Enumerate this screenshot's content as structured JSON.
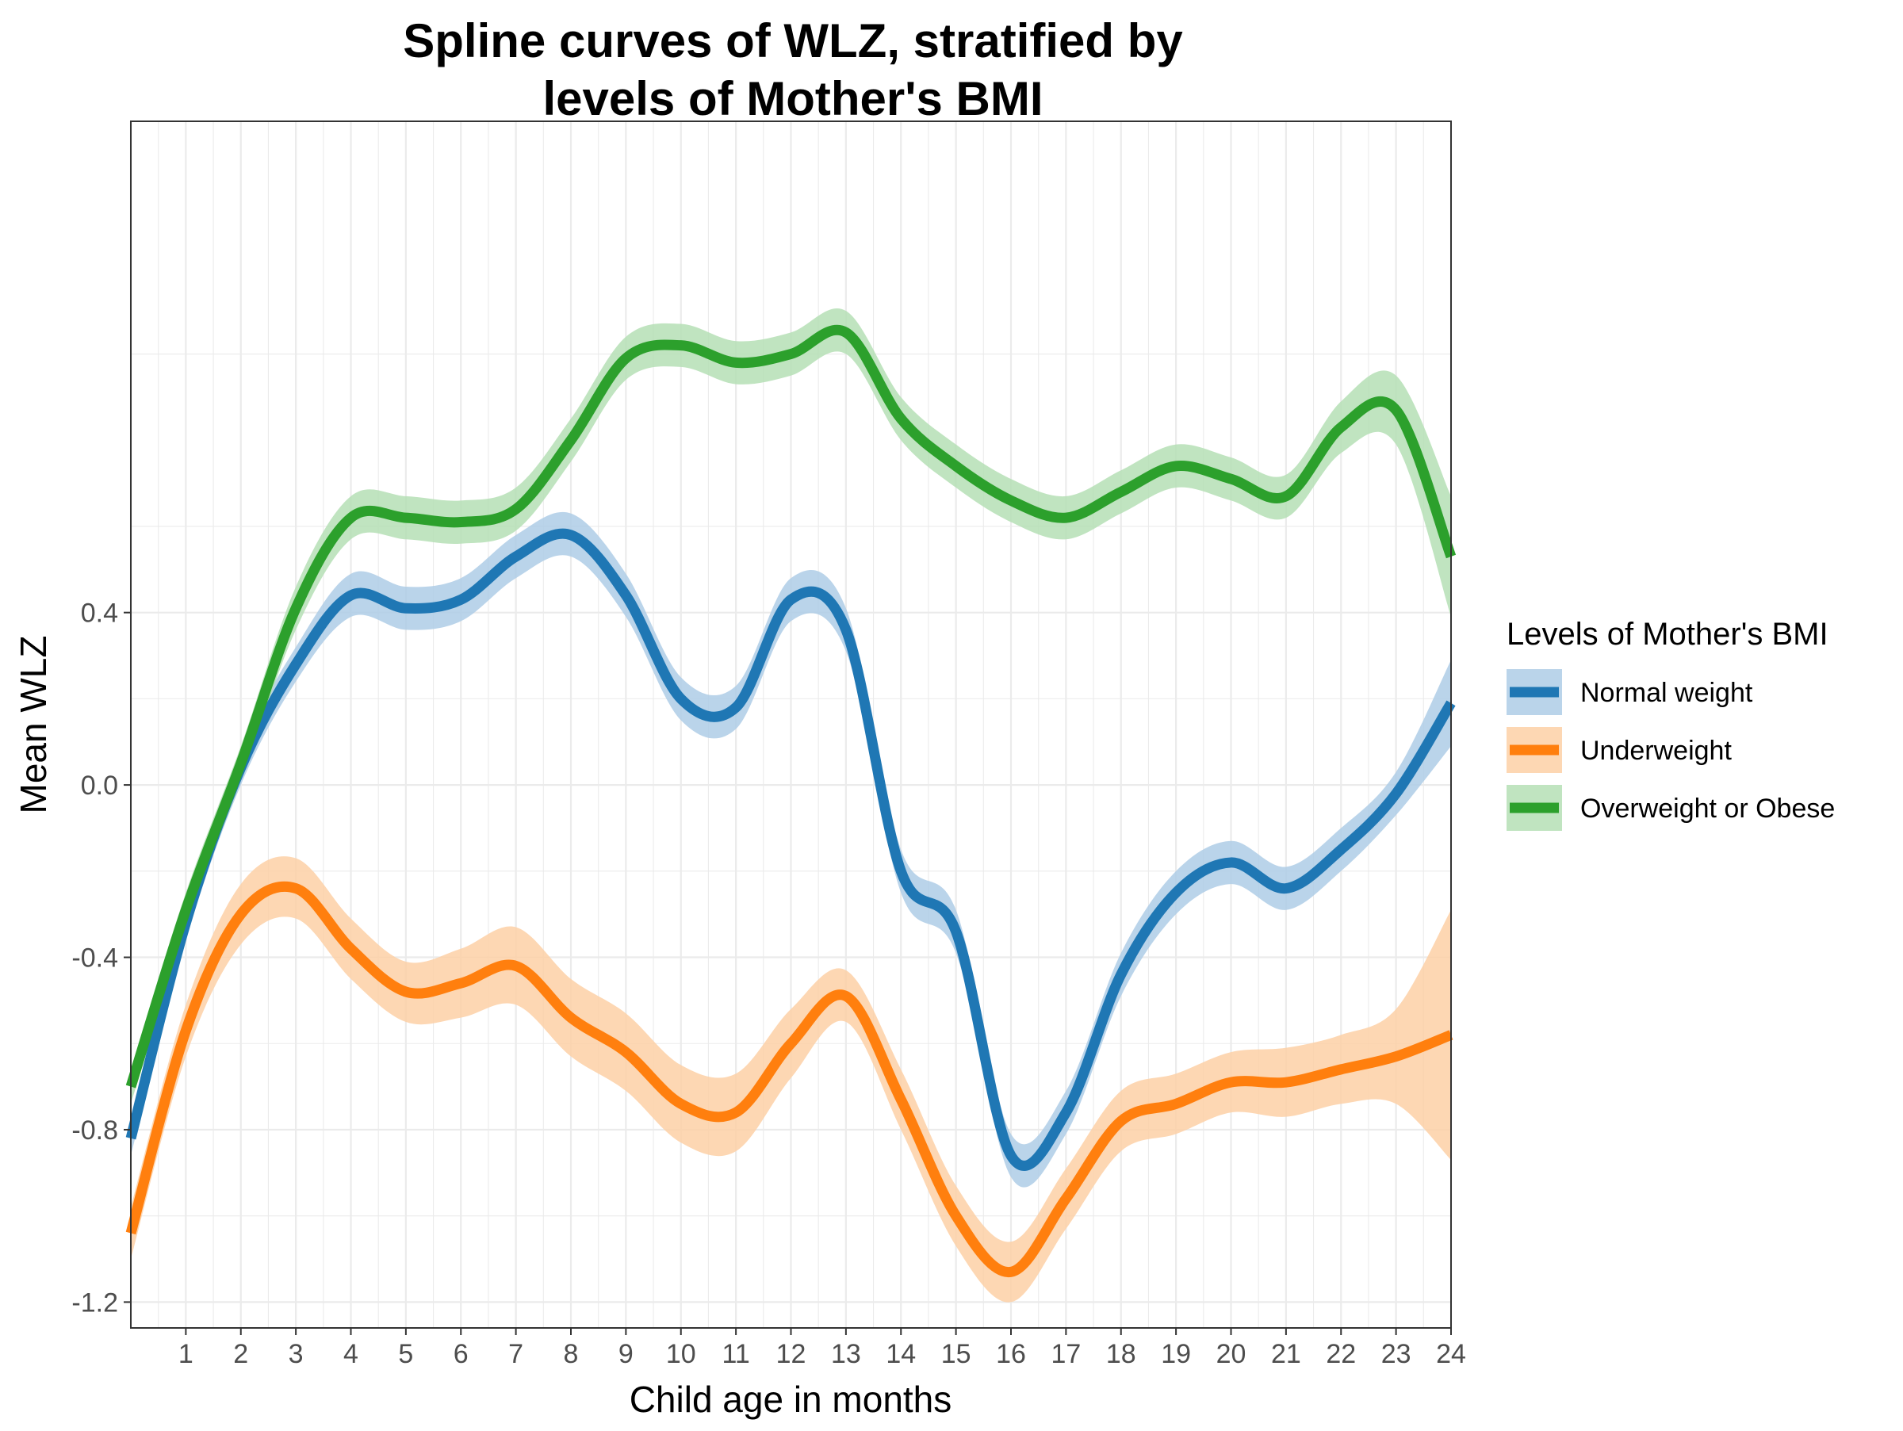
{
  "chart_data": {
    "type": "line",
    "title_lines": [
      "Spline curves of WLZ, stratified by",
      "levels of Mother's BMI"
    ],
    "xlabel": "Child age in months",
    "ylabel": "Mean WLZ",
    "xlim": [
      0,
      24
    ],
    "ylim": [
      -1.26,
      1.54
    ],
    "x_ticks": [
      1,
      2,
      3,
      4,
      5,
      6,
      7,
      8,
      9,
      10,
      11,
      12,
      13,
      14,
      15,
      16,
      17,
      18,
      19,
      20,
      21,
      22,
      23,
      24
    ],
    "x_tick_labels": [
      "1",
      "2",
      "3",
      "4",
      "5",
      "6",
      "7",
      "8",
      "9",
      "10",
      "11",
      "12",
      "13",
      "14",
      "15",
      "16",
      "17",
      "18",
      "19",
      "20",
      "21",
      "22",
      "23",
      "24"
    ],
    "y_ticks": [
      -1.2,
      -0.8,
      -0.4,
      0.0,
      0.4
    ],
    "y_tick_labels": [
      "-1.2",
      "-0.8",
      "-0.4",
      "0.0",
      "0.4"
    ],
    "grid": true,
    "legend": {
      "title": "Levels of Mother's BMI",
      "position": "right"
    },
    "series": [
      {
        "name": "Normal weight",
        "color": "#1f77b4",
        "band_color": "#aecde6",
        "x": [
          0,
          1,
          2,
          3,
          4,
          5,
          6,
          7,
          8,
          9,
          10,
          11,
          12,
          13,
          14,
          15,
          16,
          17,
          18,
          19,
          20,
          21,
          22,
          23,
          24
        ],
        "y": [
          -0.82,
          -0.32,
          0.04,
          0.28,
          0.44,
          0.41,
          0.43,
          0.53,
          0.58,
          0.44,
          0.2,
          0.18,
          0.43,
          0.36,
          -0.2,
          -0.34,
          -0.86,
          -0.76,
          -0.44,
          -0.25,
          -0.18,
          -0.24,
          -0.15,
          -0.02,
          0.19
        ],
        "lower": [
          -0.86,
          -0.36,
          0.0,
          0.24,
          0.39,
          0.36,
          0.38,
          0.48,
          0.53,
          0.39,
          0.15,
          0.13,
          0.38,
          0.31,
          -0.25,
          -0.39,
          -0.91,
          -0.81,
          -0.49,
          -0.3,
          -0.23,
          -0.29,
          -0.2,
          -0.07,
          0.09
        ],
        "upper": [
          -0.78,
          -0.28,
          0.08,
          0.32,
          0.49,
          0.46,
          0.48,
          0.58,
          0.63,
          0.49,
          0.25,
          0.23,
          0.48,
          0.41,
          -0.15,
          -0.29,
          -0.81,
          -0.71,
          -0.39,
          -0.2,
          -0.13,
          -0.19,
          -0.1,
          0.03,
          0.29
        ]
      },
      {
        "name": "Underweight",
        "color": "#ff7f0e",
        "band_color": "#fdd0a6",
        "x": [
          0,
          1,
          2,
          3,
          4,
          5,
          6,
          7,
          8,
          9,
          10,
          11,
          12,
          13,
          14,
          15,
          16,
          17,
          18,
          19,
          20,
          21,
          22,
          23,
          24
        ],
        "y": [
          -1.04,
          -0.57,
          -0.3,
          -0.24,
          -0.38,
          -0.48,
          -0.46,
          -0.42,
          -0.54,
          -0.62,
          -0.74,
          -0.76,
          -0.6,
          -0.49,
          -0.73,
          -1.0,
          -1.13,
          -0.96,
          -0.78,
          -0.74,
          -0.69,
          -0.69,
          -0.66,
          -0.63,
          -0.58
        ],
        "lower": [
          -1.1,
          -0.63,
          -0.37,
          -0.31,
          -0.45,
          -0.55,
          -0.54,
          -0.51,
          -0.63,
          -0.71,
          -0.83,
          -0.85,
          -0.68,
          -0.55,
          -0.8,
          -1.07,
          -1.2,
          -1.03,
          -0.85,
          -0.81,
          -0.76,
          -0.77,
          -0.74,
          -0.74,
          -0.87
        ],
        "upper": [
          -0.98,
          -0.51,
          -0.23,
          -0.17,
          -0.31,
          -0.41,
          -0.38,
          -0.33,
          -0.45,
          -0.53,
          -0.65,
          -0.67,
          -0.52,
          -0.43,
          -0.66,
          -0.93,
          -1.06,
          -0.89,
          -0.71,
          -0.67,
          -0.62,
          -0.61,
          -0.58,
          -0.52,
          -0.29
        ]
      },
      {
        "name": "Overweight or Obese",
        "color": "#2ca02c",
        "band_color": "#b5dfb5",
        "x": [
          0,
          1,
          2,
          3,
          4,
          5,
          6,
          7,
          8,
          9,
          10,
          11,
          12,
          13,
          14,
          15,
          16,
          17,
          18,
          19,
          20,
          21,
          22,
          23,
          24
        ],
        "y": [
          -0.7,
          -0.29,
          0.05,
          0.41,
          0.62,
          0.62,
          0.61,
          0.64,
          0.8,
          0.99,
          1.02,
          0.98,
          1.0,
          1.05,
          0.85,
          0.74,
          0.66,
          0.62,
          0.68,
          0.74,
          0.71,
          0.67,
          0.83,
          0.87,
          0.53
        ],
        "lower": [
          -0.74,
          -0.33,
          0.01,
          0.36,
          0.57,
          0.57,
          0.56,
          0.59,
          0.75,
          0.94,
          0.97,
          0.93,
          0.95,
          1.0,
          0.8,
          0.69,
          0.61,
          0.57,
          0.63,
          0.69,
          0.66,
          0.62,
          0.77,
          0.79,
          0.39
        ],
        "upper": [
          -0.66,
          -0.25,
          0.09,
          0.46,
          0.67,
          0.67,
          0.66,
          0.69,
          0.85,
          1.04,
          1.07,
          1.03,
          1.05,
          1.1,
          0.9,
          0.79,
          0.71,
          0.67,
          0.73,
          0.79,
          0.76,
          0.72,
          0.89,
          0.95,
          0.67
        ]
      }
    ]
  }
}
